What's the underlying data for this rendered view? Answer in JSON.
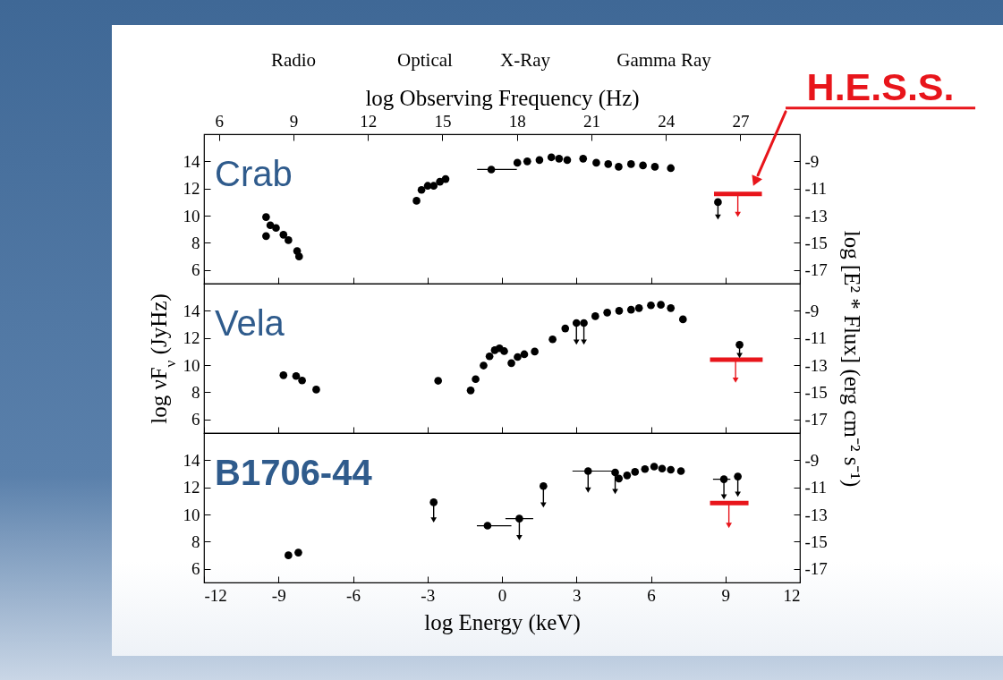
{
  "chart_data": [
    {
      "type": "scatter",
      "title": "Crab",
      "x2label": "log Observing Frequency (Hz)",
      "xlim": [
        -12,
        12
      ],
      "xticks": [
        -12,
        -9,
        -6,
        -3,
        0,
        3,
        6,
        9,
        12
      ],
      "x2lim": [
        5.4,
        29.4
      ],
      "x2ticks": [
        6,
        9,
        12,
        15,
        18,
        21,
        24,
        27
      ],
      "ylim": [
        5,
        16
      ],
      "yticks": [
        6,
        8,
        10,
        12,
        14
      ],
      "y2lim": [
        -18,
        -7
      ],
      "y2ticks": [
        -17,
        -15,
        -13,
        -11,
        -9
      ],
      "tick_labels": "y",
      "marker": "circle",
      "annotations": [
        "Radio",
        "Optical",
        "X-Ray",
        "Gamma Ray",
        {
          "text": "H.E.S.S.",
          "x": 10.2,
          "y": 11.6
        }
      ],
      "series": [
        {
          "color": "#000000",
          "x": [
            -9.5,
            -9.5,
            -9.33,
            -9.1,
            -8.8,
            -8.6,
            -8.25,
            -8.17,
            -3.44,
            -3.24,
            -2.99,
            -2.75,
            -2.5,
            -2.27,
            -0.43,
            0.62,
            1.02,
            1.51,
            1.99,
            2.3,
            2.63,
            3.27,
            3.8,
            4.28,
            4.7,
            5.2,
            5.68,
            6.16,
            6.8
          ],
          "values": [
            9.9,
            8.5,
            9.3,
            9.1,
            8.6,
            8.2,
            7.4,
            7.0,
            11.1,
            11.9,
            12.2,
            12.2,
            12.5,
            12.7,
            13.4,
            13.9,
            14.0,
            14.1,
            14.3,
            14.2,
            14.1,
            14.2,
            13.9,
            13.8,
            13.6,
            13.8,
            13.7,
            13.6,
            13.5
          ],
          "xerrors": [
            null,
            null,
            null,
            null,
            null,
            null,
            null,
            null,
            null,
            null,
            null,
            null,
            null,
            null,
            [
              -1.0,
              0.6
            ],
            null,
            null,
            null,
            null,
            null,
            null,
            null,
            null,
            null,
            null,
            null,
            null,
            null,
            null
          ]
        },
        {
          "color": "#000000",
          "x": [
            8.7
          ],
          "values": [
            11.0
          ],
          "errors": [
            [
              9.9,
              11.0
            ]
          ]
        },
        {
          "type": "line",
          "color": "#e8151b",
          "marker": "none",
          "x": [
            8.54,
            9.5,
            10.47
          ],
          "values": [
            11.6,
            11.6,
            11.6
          ],
          "errors": [
            null,
            [
              10.1,
              11.6
            ],
            null
          ]
        }
      ]
    },
    {
      "type": "scatter",
      "title": "Vela",
      "ylabel": "log νF$_{ν}$ (JyHz)",
      "y2label": "log [E² * Flux] (erg cm⁻² s⁻¹)",
      "xlim": [
        -12,
        12
      ],
      "xticks": [
        -12,
        -9,
        -6,
        -3,
        0,
        3,
        6,
        9,
        12
      ],
      "ylim": [
        5,
        16
      ],
      "yticks": [
        6,
        8,
        10,
        12,
        14
      ],
      "y2lim": [
        -18,
        -7
      ],
      "y2ticks": [
        -17,
        -15,
        -13,
        -11,
        -9
      ],
      "tick_labels": "y",
      "marker": "circle",
      "series": [
        {
          "color": "#000000",
          "x": [
            -8.8,
            -8.29,
            -8.05,
            -7.48,
            -2.57,
            -1.26,
            -1.06,
            -0.74,
            -0.5,
            -0.29,
            -0.1,
            0.09,
            0.38,
            0.63,
            0.9,
            1.32,
            2.04,
            2.55,
            3.76,
            4.24,
            4.72,
            5.2,
            5.52,
            6.0,
            6.4,
            6.8,
            7.29
          ],
          "values": [
            9.26,
            9.2,
            8.87,
            8.2,
            8.85,
            8.14,
            8.97,
            9.97,
            10.65,
            11.1,
            11.24,
            11.03,
            10.15,
            10.6,
            10.8,
            11.0,
            11.9,
            12.7,
            13.6,
            13.87,
            14.0,
            14.08,
            14.2,
            14.4,
            14.44,
            14.2,
            13.37
          ]
        },
        {
          "color": "#000000",
          "x": [
            3.0,
            3.3,
            9.57
          ],
          "values": [
            13.1,
            13.1,
            11.5
          ],
          "errors": [
            [
              11.7,
              13.1
            ],
            [
              11.7,
              13.1
            ],
            [
              10.7,
              11.5
            ]
          ]
        },
        {
          "type": "line",
          "color": "#e8151b",
          "marker": "none",
          "x": [
            8.38,
            9.41,
            10.5
          ],
          "values": [
            10.4,
            10.4,
            10.4
          ],
          "errors": [
            null,
            [
              8.9,
              10.4
            ],
            null
          ]
        }
      ]
    },
    {
      "type": "scatter",
      "title": "B1706-44",
      "xlabel": "log Energy (keV)",
      "xlim": [
        -12,
        12
      ],
      "xticks": [
        -12,
        -9,
        -6,
        -3,
        0,
        3,
        6,
        9,
        12
      ],
      "ylim": [
        5,
        16
      ],
      "yticks": [
        6,
        8,
        10,
        12,
        14
      ],
      "y2lim": [
        -18,
        -7
      ],
      "y2ticks": [
        -17,
        -15,
        -13,
        -11,
        -9
      ],
      "marker": "circle",
      "series": [
        {
          "color": "#000000",
          "x": [
            -8.6,
            -8.2,
            -0.58,
            4.71,
            5.04,
            5.36,
            5.76,
            6.13,
            6.45,
            6.8,
            7.21
          ],
          "values": [
            7.0,
            7.2,
            9.18,
            12.65,
            12.88,
            13.14,
            13.35,
            13.53,
            13.38,
            13.3,
            13.2
          ],
          "xerrors": [
            null,
            null,
            [
              -1.01,
              0.38
            ],
            null,
            null,
            null,
            null,
            null,
            null,
            null,
            null
          ]
        },
        {
          "color": "#000000",
          "x": [
            -2.75,
            0.7,
            1.67,
            3.47,
            4.56,
            8.94,
            9.5
          ],
          "values": [
            10.9,
            9.7,
            12.1,
            13.2,
            13.1,
            12.6,
            12.8
          ],
          "errors": [
            [
              9.6,
              10.9
            ],
            [
              8.3,
              9.7
            ],
            [
              10.7,
              12.1
            ],
            [
              11.8,
              13.2
            ],
            [
              11.7,
              13.1
            ],
            [
              11.3,
              12.6
            ],
            [
              11.5,
              12.8
            ]
          ],
          "xerrors": [
            null,
            [
              0.14,
              1.26
            ],
            null,
            [
              2.84,
              4.56
            ],
            null,
            [
              8.5,
              9.2
            ],
            null
          ]
        },
        {
          "type": "line",
          "color": "#e8151b",
          "marker": "none",
          "x": [
            8.38,
            9.14,
            9.93
          ],
          "values": [
            10.84,
            10.84,
            10.84
          ],
          "errors": [
            null,
            [
              9.2,
              10.84
            ],
            null
          ]
        }
      ]
    }
  ]
}
